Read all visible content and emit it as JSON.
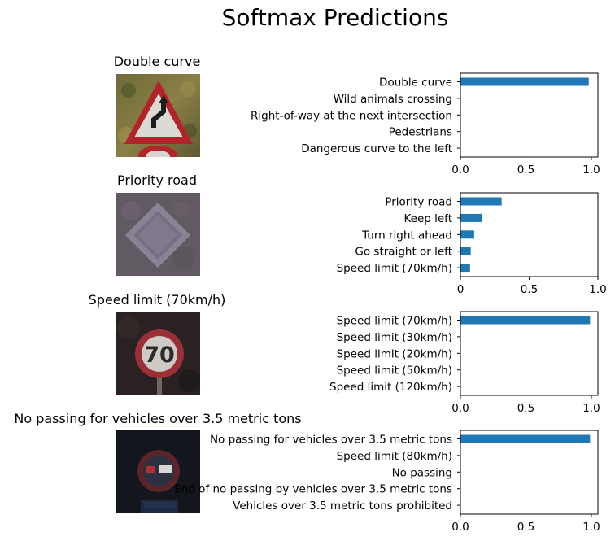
{
  "figure": {
    "title": "Softmax Predictions"
  },
  "rows": [
    {
      "image_title": "Double curve",
      "sign": "double-curve-sign",
      "chart_data": {
        "type": "bar",
        "orientation": "horizontal",
        "categories": [
          "Double curve",
          "Wild animals crossing",
          "Right-of-way at the next intersection",
          "Pedestrians",
          "Dangerous curve to the left"
        ],
        "values": [
          0.98,
          0.003,
          0.002,
          0.001,
          0.001
        ],
        "xlim": [
          0,
          1.05
        ],
        "xticks": [
          "0.0",
          "0.5",
          "1.0"
        ],
        "color": "#1f77b4"
      }
    },
    {
      "image_title": "Priority road",
      "sign": "priority-road-sign",
      "chart_data": {
        "type": "bar",
        "orientation": "horizontal",
        "categories": [
          "Priority road",
          "Keep left",
          "Turn right ahead",
          "Go straight or left",
          "Speed limit (70km/h)"
        ],
        "values": [
          0.3,
          0.16,
          0.1,
          0.075,
          0.07
        ],
        "xlim": [
          0,
          1.0
        ],
        "xticks": [
          "0",
          "0.5",
          "1.0"
        ],
        "color": "#1f77b4"
      }
    },
    {
      "image_title": "Speed limit (70km/h)",
      "sign": "speed-limit-70-sign",
      "chart_data": {
        "type": "bar",
        "orientation": "horizontal",
        "categories": [
          "Speed limit (70km/h)",
          "Speed limit (30km/h)",
          "Speed limit (20km/h)",
          "Speed limit (50km/h)",
          "Speed limit (120km/h)"
        ],
        "values": [
          0.99,
          0.003,
          0.002,
          0.001,
          0.001
        ],
        "xlim": [
          0,
          1.05
        ],
        "xticks": [
          "0.0",
          "0.5",
          "1.0"
        ],
        "color": "#1f77b4"
      }
    },
    {
      "image_title": "No passing for vehicles over 3.5 metric tons",
      "sign": "no-passing-heavy-vehicles-sign",
      "chart_data": {
        "type": "bar",
        "orientation": "horizontal",
        "categories": [
          "No passing for vehicles over 3.5 metric tons",
          "Speed limit (80km/h)",
          "No passing",
          "End of no passing by vehicles over 3.5 metric tons",
          "Vehicles over 3.5 metric tons prohibited"
        ],
        "values": [
          0.99,
          0.003,
          0.002,
          0.001,
          0.001
        ],
        "xlim": [
          0,
          1.05
        ],
        "xticks": [
          "0.0",
          "0.5",
          "1.0"
        ],
        "color": "#1f77b4"
      }
    }
  ]
}
